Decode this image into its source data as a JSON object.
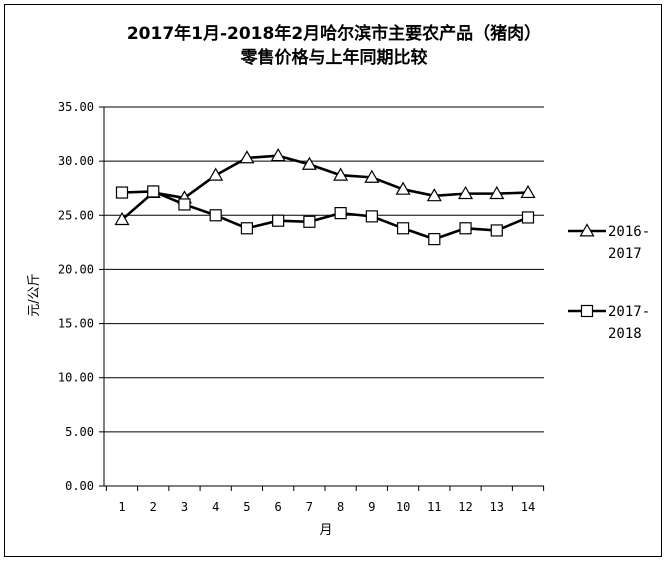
{
  "chart_data": {
    "type": "line",
    "title_line1": "2017年1月-2018年2月哈尔滨市主要农产品（猪肉）",
    "title_line2": "零售价格与上年同期比较",
    "xlabel": "月",
    "ylabel": "元/公斤",
    "categories": [
      "1",
      "2",
      "3",
      "4",
      "5",
      "6",
      "7",
      "8",
      "9",
      "10",
      "11",
      "12",
      "13",
      "14"
    ],
    "ylim": [
      0,
      35
    ],
    "yticks": [
      "0.00",
      "5.00",
      "10.00",
      "15.00",
      "20.00",
      "25.00",
      "30.00",
      "35.00"
    ],
    "grid": true,
    "legend_position": "right",
    "series": [
      {
        "name_line1": "2016-",
        "name_line2": "2017",
        "marker": "triangle",
        "values": [
          24.6,
          27.1,
          26.6,
          28.7,
          30.3,
          30.5,
          29.7,
          28.7,
          28.5,
          27.4,
          26.8,
          27.0,
          27.0,
          27.1
        ]
      },
      {
        "name_line1": "2017-",
        "name_line2": "2018",
        "marker": "square",
        "values": [
          27.1,
          27.2,
          26.0,
          25.0,
          23.8,
          24.5,
          24.4,
          25.2,
          24.9,
          23.8,
          22.8,
          23.8,
          23.6,
          24.8
        ]
      }
    ]
  }
}
